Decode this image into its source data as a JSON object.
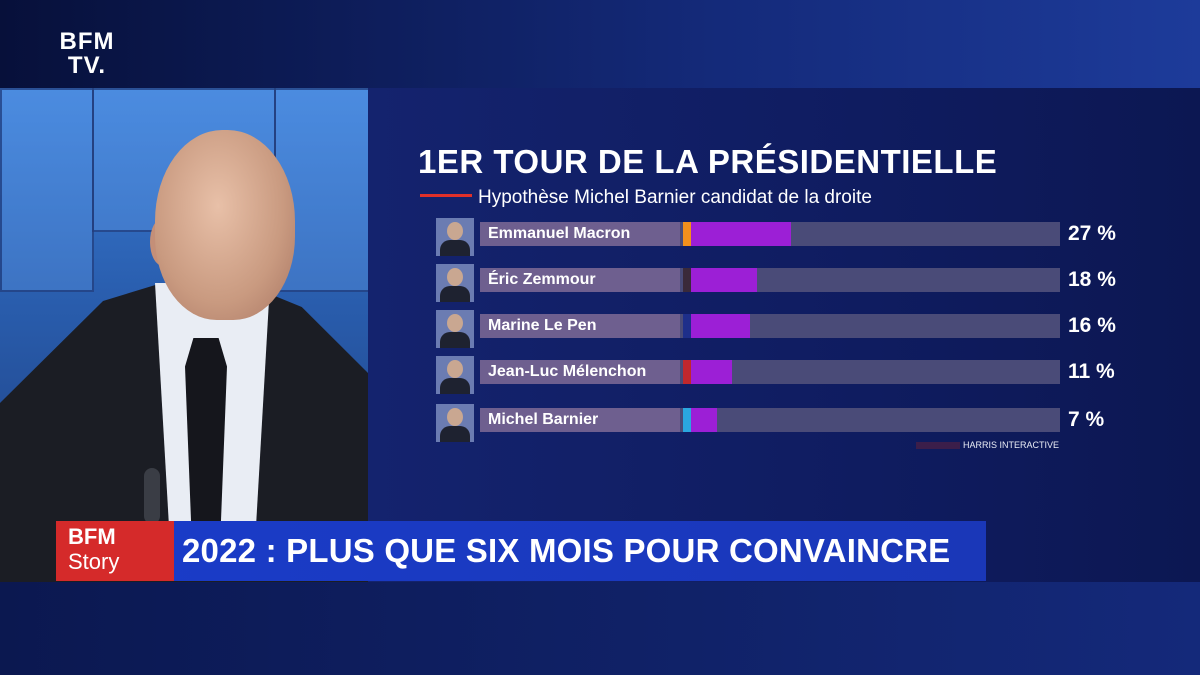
{
  "channel": {
    "logo_line1": "BFM",
    "logo_line2": "TV."
  },
  "show": {
    "logo_line1": "BFM",
    "logo_line2": "Story",
    "logo_color": "#d52a2a"
  },
  "headline": "2022 : PLUS QUE SIX MOIS POUR CONVAINCRE",
  "chart_data": {
    "type": "bar",
    "orientation": "horizontal",
    "title": "1ER TOUR DE LA PRÉSIDENTIELLE",
    "subtitle": "Hypothèse Michel Barnier candidat de la droite",
    "categories": [
      "Emmanuel Macron",
      "Éric Zemmour",
      "Marine Le Pen",
      "Jean-Luc Mélenchon",
      "Michel Barnier"
    ],
    "values": [
      27,
      18,
      16,
      11,
      7
    ],
    "value_labels": [
      "27 %",
      "18 %",
      "16 %",
      "11 %",
      "7 %"
    ],
    "party_colors": [
      "#f2901c",
      "#3a2a3a",
      "#1e2f8a",
      "#c0282d",
      "#2aa7e0"
    ],
    "bar_color": "#9c1fd6",
    "source": "HARRIS INTERACTIVE",
    "xlim": [
      0,
      100
    ]
  }
}
